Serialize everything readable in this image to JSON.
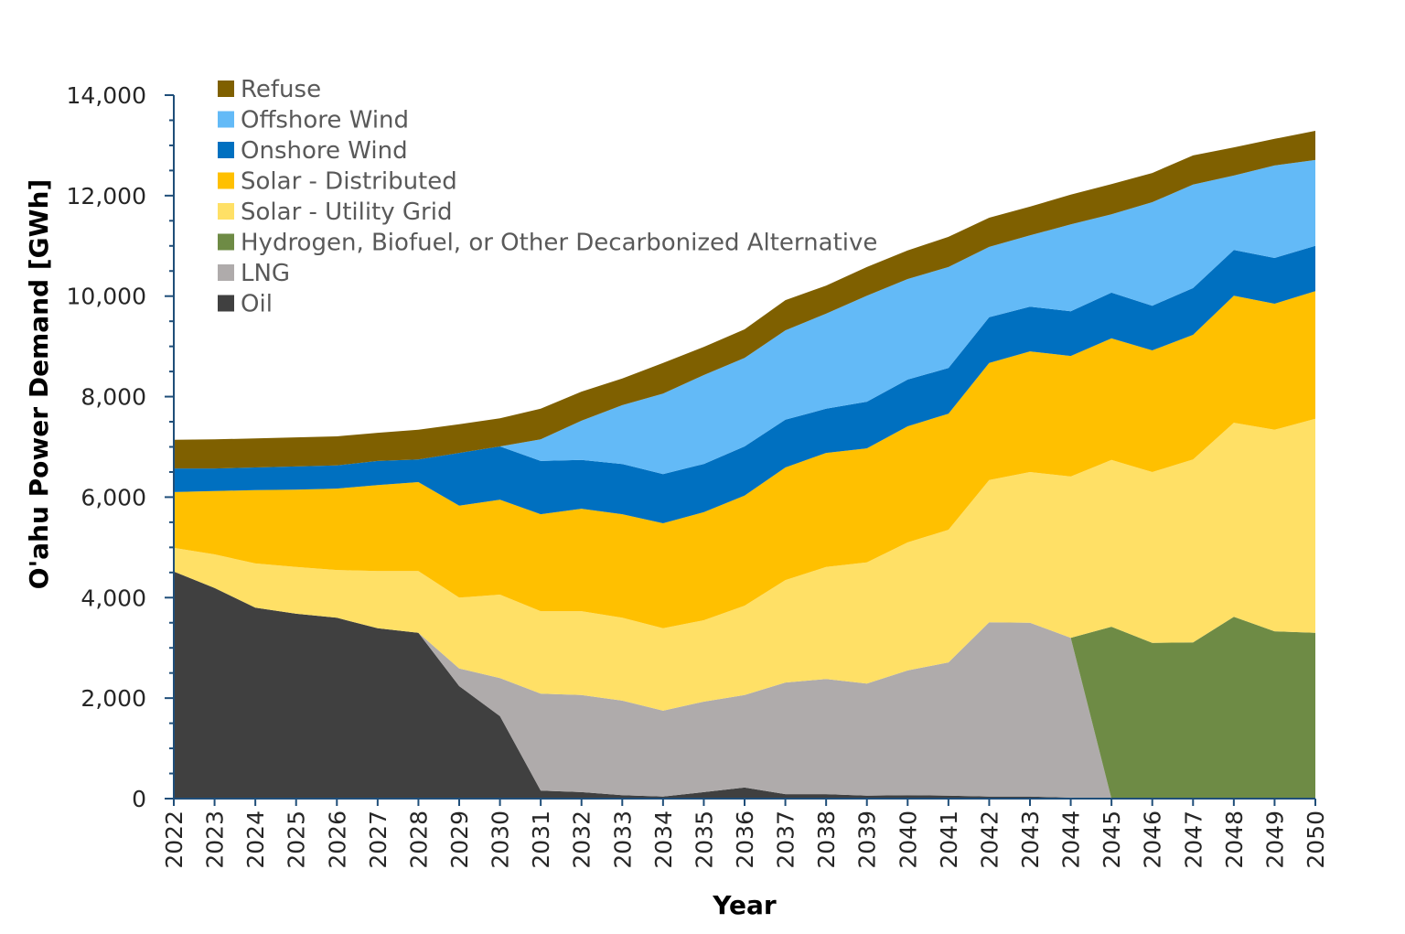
{
  "chart_data": {
    "type": "area",
    "stacked": true,
    "title": "",
    "xlabel": "Year",
    "ylabel": "O'ahu Power Demand [GWh]",
    "ylim": [
      0,
      14000
    ],
    "yticks": [
      "0",
      "2,000",
      "4,000",
      "6,000",
      "8,000",
      "10,000",
      "12,000",
      "14,000"
    ],
    "grid": false,
    "legend_position": "top-left",
    "categories": [
      "2022",
      "2023",
      "2024",
      "2025",
      "2026",
      "2027",
      "2028",
      "2029",
      "2030",
      "2031",
      "2032",
      "2033",
      "2034",
      "2035",
      "2036",
      "2037",
      "2038",
      "2039",
      "2040",
      "2041",
      "2042",
      "2043",
      "2044",
      "2045",
      "2046",
      "2047",
      "2048",
      "2049",
      "2050"
    ],
    "series": [
      {
        "name": "Oil",
        "color": "#404040",
        "values": [
          4520,
          4190,
          3800,
          3680,
          3600,
          3390,
          3300,
          2240,
          1640,
          160,
          130,
          70,
          40,
          130,
          220,
          90,
          90,
          60,
          70,
          60,
          40,
          40,
          20,
          0,
          0,
          0,
          0,
          0,
          0
        ]
      },
      {
        "name": "LNG",
        "color": "#AFABAB",
        "values": [
          0,
          0,
          0,
          0,
          0,
          0,
          0,
          350,
          760,
          1930,
          1930,
          1880,
          1710,
          1800,
          1840,
          2220,
          2290,
          2230,
          2480,
          2650,
          3470,
          3460,
          3180,
          0,
          0,
          0,
          0,
          0,
          0
        ]
      },
      {
        "name": "Hydrogen, Biofuel, or Other Decarbonized Alternative",
        "color": "#6E8B45",
        "values": [
          0,
          0,
          0,
          0,
          0,
          0,
          0,
          0,
          0,
          0,
          0,
          0,
          0,
          0,
          0,
          0,
          0,
          0,
          0,
          0,
          0,
          0,
          0,
          3420,
          3100,
          3110,
          3620,
          3330,
          3300
        ]
      },
      {
        "name": "Solar - Utility Grid",
        "color": "#FFE066",
        "values": [
          470,
          670,
          880,
          930,
          950,
          1140,
          1230,
          1410,
          1660,
          1640,
          1670,
          1650,
          1640,
          1620,
          1780,
          2040,
          2230,
          2410,
          2550,
          2640,
          2830,
          3000,
          3210,
          3320,
          3400,
          3640,
          3860,
          4010,
          4260
        ]
      },
      {
        "name": "Solar - Distributed",
        "color": "#FFC000",
        "values": [
          1110,
          1260,
          1460,
          1540,
          1620,
          1710,
          1770,
          1830,
          1890,
          1930,
          2040,
          2060,
          2090,
          2150,
          2190,
          2240,
          2270,
          2270,
          2310,
          2310,
          2330,
          2400,
          2400,
          2420,
          2420,
          2480,
          2530,
          2510,
          2540
        ]
      },
      {
        "name": "Onshore Wind",
        "color": "#0070C0",
        "values": [
          470,
          450,
          450,
          460,
          460,
          480,
          450,
          1050,
          1060,
          1060,
          970,
          1000,
          980,
          960,
          980,
          950,
          880,
          930,
          930,
          910,
          910,
          890,
          890,
          910,
          890,
          930,
          910,
          910,
          900
        ]
      },
      {
        "name": "Offshore Wind",
        "color": "#63BAF7",
        "values": [
          0,
          0,
          0,
          0,
          0,
          0,
          0,
          0,
          0,
          430,
          780,
          1170,
          1600,
          1770,
          1760,
          1780,
          1890,
          2110,
          2000,
          2010,
          1400,
          1420,
          1730,
          1560,
          2060,
          2060,
          1480,
          1840,
          1710
        ]
      },
      {
        "name": "Refuse",
        "color": "#7F6000",
        "values": [
          570,
          580,
          580,
          580,
          580,
          560,
          590,
          570,
          560,
          610,
          580,
          530,
          610,
          560,
          570,
          600,
          560,
          570,
          570,
          600,
          580,
          570,
          590,
          600,
          580,
          580,
          560,
          530,
          580
        ]
      }
    ],
    "axis_color": "#1F4E79"
  }
}
